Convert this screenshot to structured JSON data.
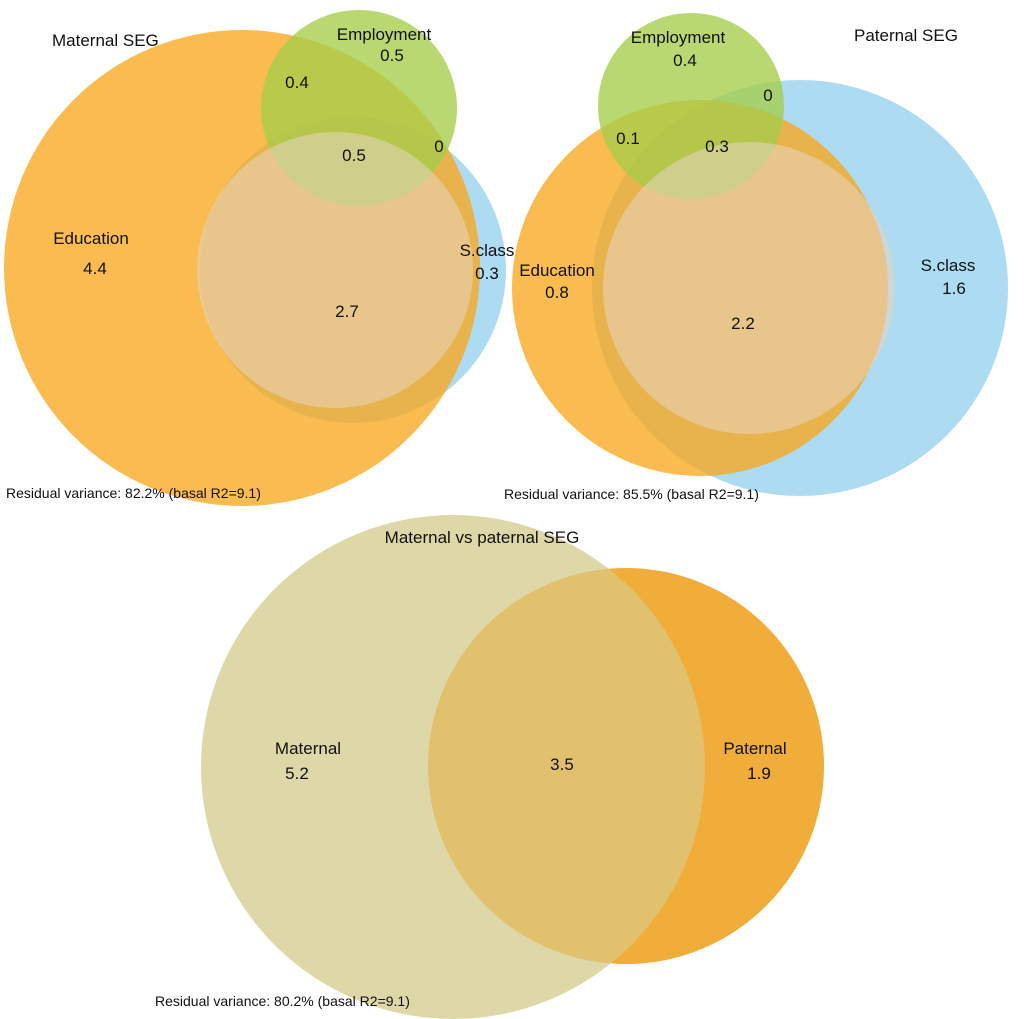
{
  "colors": {
    "education": "#f9a81f",
    "employment": "#a5cd4a",
    "social_class": "#9fd5f0",
    "maternal": "#d8d098",
    "paternal": "#f0a830"
  },
  "maternal_panel": {
    "title": "Maternal SEG",
    "sets": {
      "education": "Education",
      "employment": "Employment",
      "social_class": "S.class"
    },
    "values": {
      "education_only": "4.4",
      "employment_only": "0.5",
      "social_class_only": "0.3",
      "education_employment": "0.4",
      "employment_social_class": "0",
      "education_social_class": "2.7",
      "all_three": "0.5"
    },
    "residual": "Residual variance: 82.2%  (basal R2=9.1)"
  },
  "paternal_panel": {
    "title": "Paternal SEG",
    "sets": {
      "education": "Education",
      "employment": "Employment",
      "social_class": "S.class"
    },
    "values": {
      "education_only": "0.8",
      "employment_only": "0.4",
      "social_class_only": "1.6",
      "education_employment": "0.1",
      "employment_social_class": "0",
      "education_social_class": "2.2",
      "all_three": "0.3"
    },
    "residual": "Residual variance: 85.5%  (basal R2=9.1)"
  },
  "comparison_panel": {
    "title": "Maternal vs paternal SEG",
    "sets": {
      "maternal": "Maternal",
      "paternal": "Paternal"
    },
    "values": {
      "maternal_only": "5.2",
      "overlap": "3.5",
      "paternal_only": "1.9"
    },
    "residual": "Residual variance: 80.2%  (basal R2=9.1)"
  }
}
